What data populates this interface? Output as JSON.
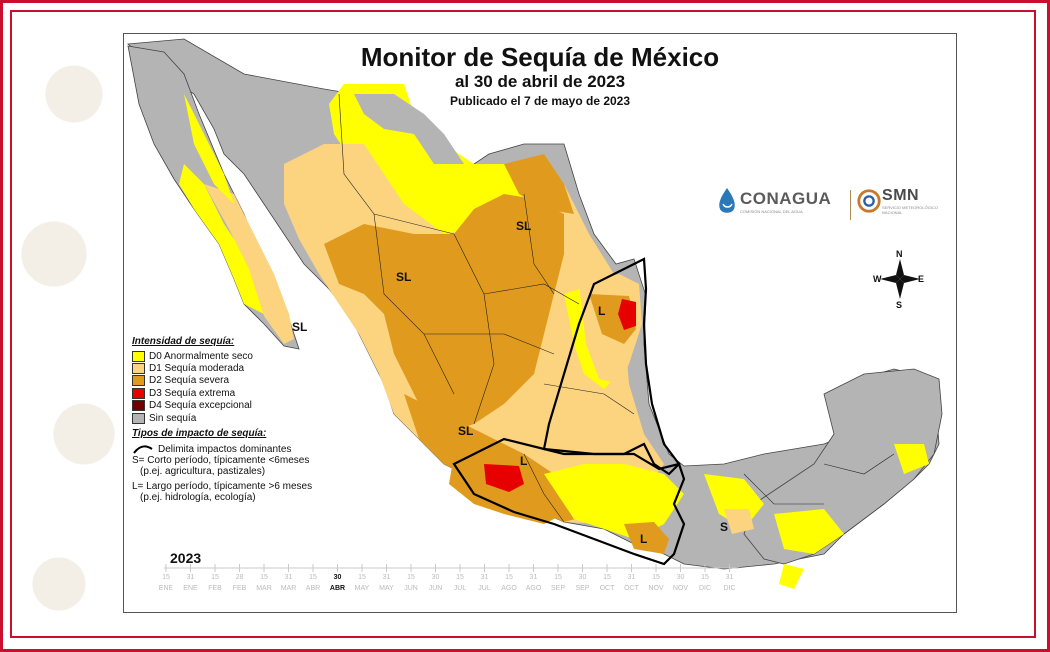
{
  "map": {
    "title": "Monitor de Sequía de México",
    "subtitle": "al 30 de abril de 2023",
    "published": "Publicado el 7 de mayo de 2023"
  },
  "legend": {
    "intensity_heading": "Intensidad de sequía:",
    "items": [
      {
        "label": "D0 Anormalmente seco",
        "color": "#ffff00"
      },
      {
        "label": "D1 Sequía moderada",
        "color": "#fcd37f"
      },
      {
        "label": "D2 Sequía severa",
        "color": "#e09b1e"
      },
      {
        "label": "D3 Sequía extrema",
        "color": "#e60000"
      },
      {
        "label": "D4 Sequía excepcional",
        "color": "#730000"
      },
      {
        "label": "Sin sequía",
        "color": "#b4b4b4"
      }
    ],
    "impact_heading": "Tipos de impacto de sequía:",
    "impact_line": "Delimita impactos dominantes",
    "short_term": "S= Corto período, típicamente <6meses",
    "short_term_ex": "(p.ej. agricultura, pastizales)",
    "long_term": "L= Largo período, típicamente >6 meses",
    "long_term_ex": "(p.ej. hidrología, ecología)"
  },
  "region_labels": [
    "SL",
    "SL",
    "SL",
    "L",
    "SL",
    "L",
    "L",
    "S"
  ],
  "logos": {
    "conagua": "CONAGUA",
    "conagua_sub": "COMISIÓN NACIONAL DEL AGUA",
    "smn": "SMN",
    "smn_sub": "SERVICIO METEOROLÓGICO NACIONAL"
  },
  "compass": {
    "n": "N",
    "s": "S",
    "e": "E",
    "w": "W"
  },
  "timeline": {
    "year": "2023",
    "days": [
      "15",
      "31",
      "15",
      "28",
      "15",
      "31",
      "15",
      "30",
      "15",
      "31",
      "15",
      "30",
      "15",
      "31",
      "15",
      "31",
      "15",
      "30",
      "15",
      "31",
      "15",
      "30",
      "15",
      "31"
    ],
    "months": [
      "ENE",
      "ENE",
      "FEB",
      "FEB",
      "MAR",
      "MAR",
      "ABR",
      "ABR",
      "MAY",
      "MAY",
      "JUN",
      "JUN",
      "JUL",
      "JUL",
      "AGO",
      "AGO",
      "SEP",
      "SEP",
      "OCT",
      "OCT",
      "NOV",
      "NOV",
      "DIC",
      "DIC"
    ],
    "current_index": 7
  }
}
